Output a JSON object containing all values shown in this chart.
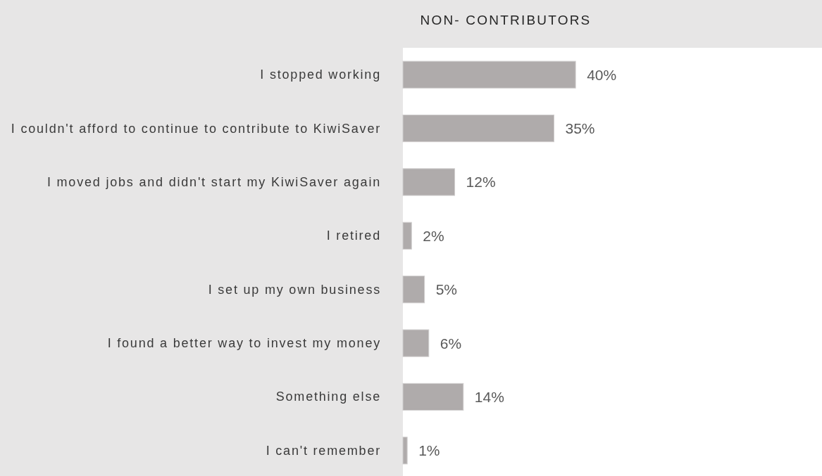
{
  "chart_data": {
    "type": "bar",
    "orientation": "horizontal",
    "title": "NON- CONTRIBUTORS",
    "categories": [
      "I stopped working",
      "I couldn't afford to continue to contribute to KiwiSaver",
      "I moved jobs and didn't start my KiwiSaver again",
      "I retired",
      "I set up my own business",
      "I found a better way to invest my money",
      "Something else",
      "I can't remember"
    ],
    "values": [
      40,
      35,
      12,
      2,
      5,
      6,
      14,
      1
    ],
    "value_labels": [
      "40%",
      "35%",
      "12%",
      "2%",
      "5%",
      "6%",
      "14%",
      "1%"
    ],
    "color": "#afabab"
  }
}
